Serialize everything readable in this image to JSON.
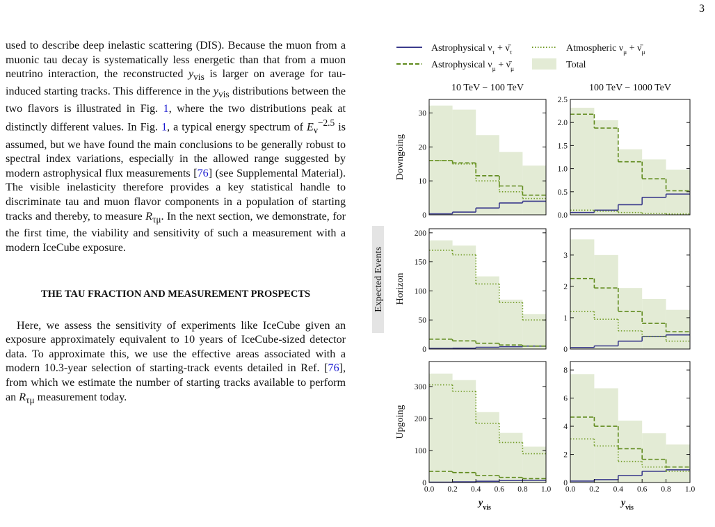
{
  "page_number": "3",
  "body": {
    "paragraph_1": [
      "used to describe deep inelastic scattering (DIS). Because the muon from a muonic tau decay is systematically less energetic than that from a muon neutrino interaction, the reconstructed ",
      "y",
      "vis",
      " is larger on average for tau-induced starting tracks. This difference in the ",
      "y",
      "vis",
      " distributions between the two flavors is illustrated in Fig. ",
      "1",
      ", where the two distributions peak at distinctly different values. In Fig. ",
      "1",
      ", a typical energy spectrum of ",
      "E",
      "ν",
      "−2.5",
      " is assumed, but we have found the main conclusions to be generally robust to spectral index variations, especially in the allowed range suggested by modern astrophysical flux measurements [",
      "76",
      "] (see Supplemental Material). The visible inelasticity therefore provides a key statistical handle to discriminate tau and muon flavor components in a population of starting tracks and thereby, to measure ",
      "R",
      "τμ",
      ". In the next section, we demonstrate, for the first time, the viability and sensitivity of such a measurement with a modern IceCube exposure."
    ],
    "heading": "THE TAU FRACTION AND MEASUREMENT PROSPECTS",
    "paragraph_2": [
      "Here, we assess the sensitivity of experiments like IceCube given an exposure approximately equivalent to 10 years of IceCube-sized detector data. To approximate this, we use the effective areas associated with a modern 10.3-year selection of starting-track events detailed in Ref. [",
      "76",
      "], from which we estimate the number of starting tracks available to perform an ",
      "R",
      "τμ",
      " measurement today."
    ]
  },
  "figure": {
    "legend": [
      {
        "name": [
          "Astrophysical ν",
          "τ",
          " + ν̄",
          "τ"
        ],
        "color": "#3b3b8c",
        "style": "solid"
      },
      {
        "name": [
          "Astrophysical ν",
          "μ",
          " + ν̄",
          "μ"
        ],
        "color": "#5f8a1c",
        "style": "dashed"
      },
      {
        "name": [
          "Atmospheric ν",
          "μ",
          " + ν̄",
          "μ"
        ],
        "color": "#6f9a22",
        "style": "dotted"
      },
      {
        "name": [
          "Total"
        ],
        "color": "#e3ebd5",
        "style": "fill"
      }
    ],
    "column_titles": [
      "10 TeV − 100 TeV",
      "100 TeV − 1000 TeV"
    ],
    "row_labels": [
      "Downgoing",
      "Horizon",
      "Upgoing"
    ],
    "ylabel": "Expected Events",
    "xlabel": [
      "y",
      "vis"
    ],
    "chart_data": [
      {
        "type": "histogram",
        "bins": [
          0,
          0.2,
          0.4,
          0.6,
          0.8,
          1
        ],
        "xlim": [
          0,
          1
        ],
        "ylim": [
          0,
          34
        ],
        "yticks": [
          0,
          10,
          20,
          30
        ],
        "series": [
          {
            "values": [
              0.3,
              0.8,
              2,
              3.5,
              4
            ]
          },
          {
            "values": [
              16,
              15.3,
              11.5,
              8.5,
              5.8
            ]
          },
          {
            "values": [
              16,
              15,
              10,
              6.8,
              4.8
            ]
          },
          {
            "values": [
              32.2,
              31,
              23.5,
              18.5,
              14.5
            ]
          }
        ]
      },
      {
        "type": "histogram",
        "bins": [
          0,
          0.2,
          0.4,
          0.6,
          0.8,
          1
        ],
        "xlim": [
          0,
          1
        ],
        "ylim": [
          0,
          2.5
        ],
        "yticks": [
          {
            "value": 0,
            "label": "0.0"
          },
          0.5,
          {
            "value": 1,
            "label": "1.0"
          },
          1.5,
          {
            "value": 2,
            "label": "2.0"
          },
          2.5
        ],
        "series": [
          {
            "values": [
              0.05,
              0.1,
              0.22,
              0.38,
              0.45
            ]
          },
          {
            "values": [
              2.18,
              1.88,
              1.15,
              0.78,
              0.52
            ]
          },
          {
            "values": [
              0.1,
              0.08,
              0.05,
              0.03,
              0.02
            ]
          },
          {
            "values": [
              2.32,
              2.05,
              1.42,
              1.2,
              0.98
            ]
          }
        ]
      },
      {
        "type": "histogram",
        "bins": [
          0,
          0.2,
          0.4,
          0.6,
          0.8,
          1
        ],
        "xlim": [
          0,
          1
        ],
        "ylim": [
          0,
          207
        ],
        "yticks": [
          0,
          50,
          100,
          150,
          200
        ],
        "series": [
          {
            "values": [
              1,
              1.5,
              3,
              4,
              5
            ]
          },
          {
            "values": [
              17,
              14,
              10,
              7,
              5
            ]
          },
          {
            "values": [
              170,
              162,
              112,
              80,
              50
            ]
          },
          {
            "values": [
              187,
              178,
              125,
              85,
              60
            ]
          }
        ]
      },
      {
        "type": "histogram",
        "bins": [
          0,
          0.2,
          0.4,
          0.6,
          0.8,
          1
        ],
        "xlim": [
          0,
          1
        ],
        "ylim": [
          0,
          3.84
        ],
        "yticks": [
          0,
          1,
          2,
          3
        ],
        "series": [
          {
            "values": [
              0.05,
              0.1,
              0.25,
              0.4,
              0.45
            ]
          },
          {
            "values": [
              2.25,
              1.95,
              1.2,
              0.82,
              0.55
            ]
          },
          {
            "values": [
              1.2,
              0.95,
              0.58,
              0.4,
              0.25
            ]
          },
          {
            "values": [
              3.5,
              3.0,
              1.95,
              1.6,
              1.25
            ]
          }
        ]
      },
      {
        "type": "histogram",
        "bins": [
          0,
          0.2,
          0.4,
          0.6,
          0.8,
          1
        ],
        "xlim": [
          0,
          1
        ],
        "ylim": [
          0,
          378
        ],
        "yticks": [
          0,
          100,
          200,
          300
        ],
        "xticks": [
          {
            "value": 0,
            "label": "0.0"
          },
          0.2,
          0.4,
          0.6,
          0.8,
          {
            "value": 1,
            "label": "1.0"
          }
        ],
        "series": [
          {
            "values": [
              1,
              2,
              4,
              6,
              7
            ]
          },
          {
            "values": [
              35,
              31,
              22,
              16,
              12
            ]
          },
          {
            "values": [
              305,
              285,
              185,
              125,
              90
            ]
          },
          {
            "values": [
              340,
              320,
              220,
              155,
              112
            ]
          }
        ]
      },
      {
        "type": "histogram",
        "bins": [
          0,
          0.2,
          0.4,
          0.6,
          0.8,
          1
        ],
        "xlim": [
          0,
          1
        ],
        "ylim": [
          0,
          8.6
        ],
        "yticks": [
          0,
          2,
          4,
          6,
          8
        ],
        "xticks": [
          {
            "value": 0,
            "label": "0.0"
          },
          0.2,
          0.4,
          0.6,
          0.8,
          {
            "value": 1,
            "label": "1.0"
          }
        ],
        "series": [
          {
            "values": [
              0.1,
              0.2,
              0.5,
              0.8,
              0.9
            ]
          },
          {
            "values": [
              4.65,
              4.0,
              2.4,
              1.65,
              1.1
            ]
          },
          {
            "values": [
              3.1,
              2.6,
              1.5,
              1.1,
              0.8
            ]
          },
          {
            "values": [
              7.7,
              6.7,
              4.4,
              3.5,
              2.7
            ]
          }
        ]
      }
    ]
  }
}
